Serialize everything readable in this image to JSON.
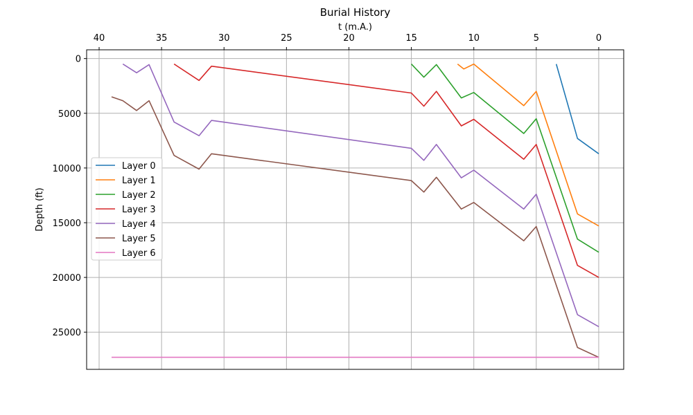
{
  "chart_data": {
    "type": "line",
    "title": "Burial History",
    "xlabel": "t (m.A.)",
    "ylabel": "Depth (ft)",
    "xlim": [
      41,
      -2
    ],
    "ylim": [
      28400,
      -800
    ],
    "x_axis_position": "top",
    "y_inverted": true,
    "grid": true,
    "legend_position": "center-left",
    "xticks": [
      40,
      35,
      30,
      25,
      20,
      15,
      10,
      5,
      0
    ],
    "yticks": [
      0,
      5000,
      10000,
      15000,
      20000,
      25000
    ],
    "colors": [
      "#1f77b4",
      "#ff7f0e",
      "#2ca02c",
      "#d62728",
      "#9467bd",
      "#8c564b",
      "#e377c2"
    ],
    "series": [
      {
        "name": "Layer 0",
        "x": [
          3.4,
          1.7,
          0
        ],
        "y": [
          500,
          7300,
          8700
        ]
      },
      {
        "name": "Layer 1",
        "x": [
          11.3,
          10.8,
          10,
          6,
          5,
          1.7,
          0
        ],
        "y": [
          500,
          950,
          500,
          4300,
          3000,
          14200,
          15300
        ]
      },
      {
        "name": "Layer 2",
        "x": [
          15,
          14,
          13,
          11,
          10,
          6,
          5,
          1.7,
          0
        ],
        "y": [
          500,
          1700,
          550,
          3600,
          3100,
          6850,
          5500,
          16500,
          17700
        ]
      },
      {
        "name": "Layer 3",
        "x": [
          34,
          32,
          31,
          15,
          14,
          13,
          11,
          10,
          6,
          5,
          1.7,
          0
        ],
        "y": [
          500,
          2000,
          700,
          3150,
          4350,
          3000,
          6150,
          5550,
          9200,
          7850,
          18900,
          20000
        ]
      },
      {
        "name": "Layer 4",
        "x": [
          38.1,
          37,
          36,
          34,
          32,
          31,
          15,
          14,
          13,
          11,
          10,
          6,
          5,
          1.7,
          0
        ],
        "y": [
          500,
          1300,
          550,
          5800,
          7050,
          5650,
          8200,
          9300,
          7850,
          10900,
          10200,
          13750,
          12400,
          23400,
          24500
        ]
      },
      {
        "name": "Layer 5",
        "x": [
          39,
          38.1,
          37,
          36,
          34,
          32,
          31,
          15,
          14,
          13,
          11,
          10,
          6,
          5,
          1.7,
          0
        ],
        "y": [
          3500,
          3850,
          4750,
          3850,
          8850,
          10100,
          8700,
          11150,
          12200,
          10850,
          13750,
          13150,
          16650,
          15350,
          26400,
          27300
        ]
      },
      {
        "name": "Layer 6",
        "x": [
          39,
          0
        ],
        "y": [
          27300,
          27300
        ]
      }
    ]
  }
}
